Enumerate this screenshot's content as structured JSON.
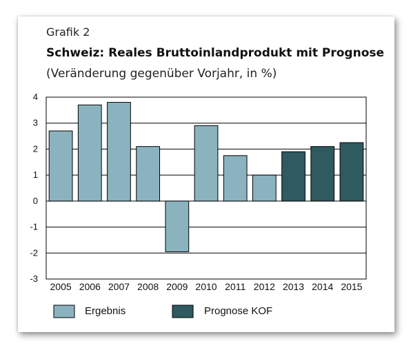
{
  "header": {
    "label": "Grafik 2",
    "title": "Schweiz: Reales Bruttoinlandprodukt mit Prognose",
    "subtitle": "(Veränderung gegenüber Vorjahr, in %)"
  },
  "legend": {
    "result": "Ergebnis",
    "forecast": "Prognose KOF"
  },
  "colors": {
    "result": "#8ab3bf",
    "forecast": "#2e5a60",
    "grid": "#000000"
  },
  "chart_data": {
    "type": "bar",
    "title": "Schweiz: Reales Bruttoinlandprodukt mit Prognose",
    "subtitle": "(Veränderung gegenüber Vorjahr, in %)",
    "xlabel": "",
    "ylabel": "",
    "ylim": [
      -3,
      4
    ],
    "yticks": [
      4,
      3,
      2,
      1,
      0,
      -1,
      -2,
      -3
    ],
    "grid": true,
    "legend_position": "bottom",
    "categories": [
      "2005",
      "2006",
      "2007",
      "2008",
      "2009",
      "2010",
      "2011",
      "2012",
      "2013",
      "2014",
      "2015"
    ],
    "values": [
      2.7,
      3.7,
      3.8,
      2.1,
      -1.95,
      2.9,
      1.75,
      1.0,
      1.9,
      2.1,
      2.25
    ],
    "series_type": [
      "Ergebnis",
      "Ergebnis",
      "Ergebnis",
      "Ergebnis",
      "Ergebnis",
      "Ergebnis",
      "Ergebnis",
      "Ergebnis",
      "Prognose KOF",
      "Prognose KOF",
      "Prognose KOF"
    ]
  }
}
